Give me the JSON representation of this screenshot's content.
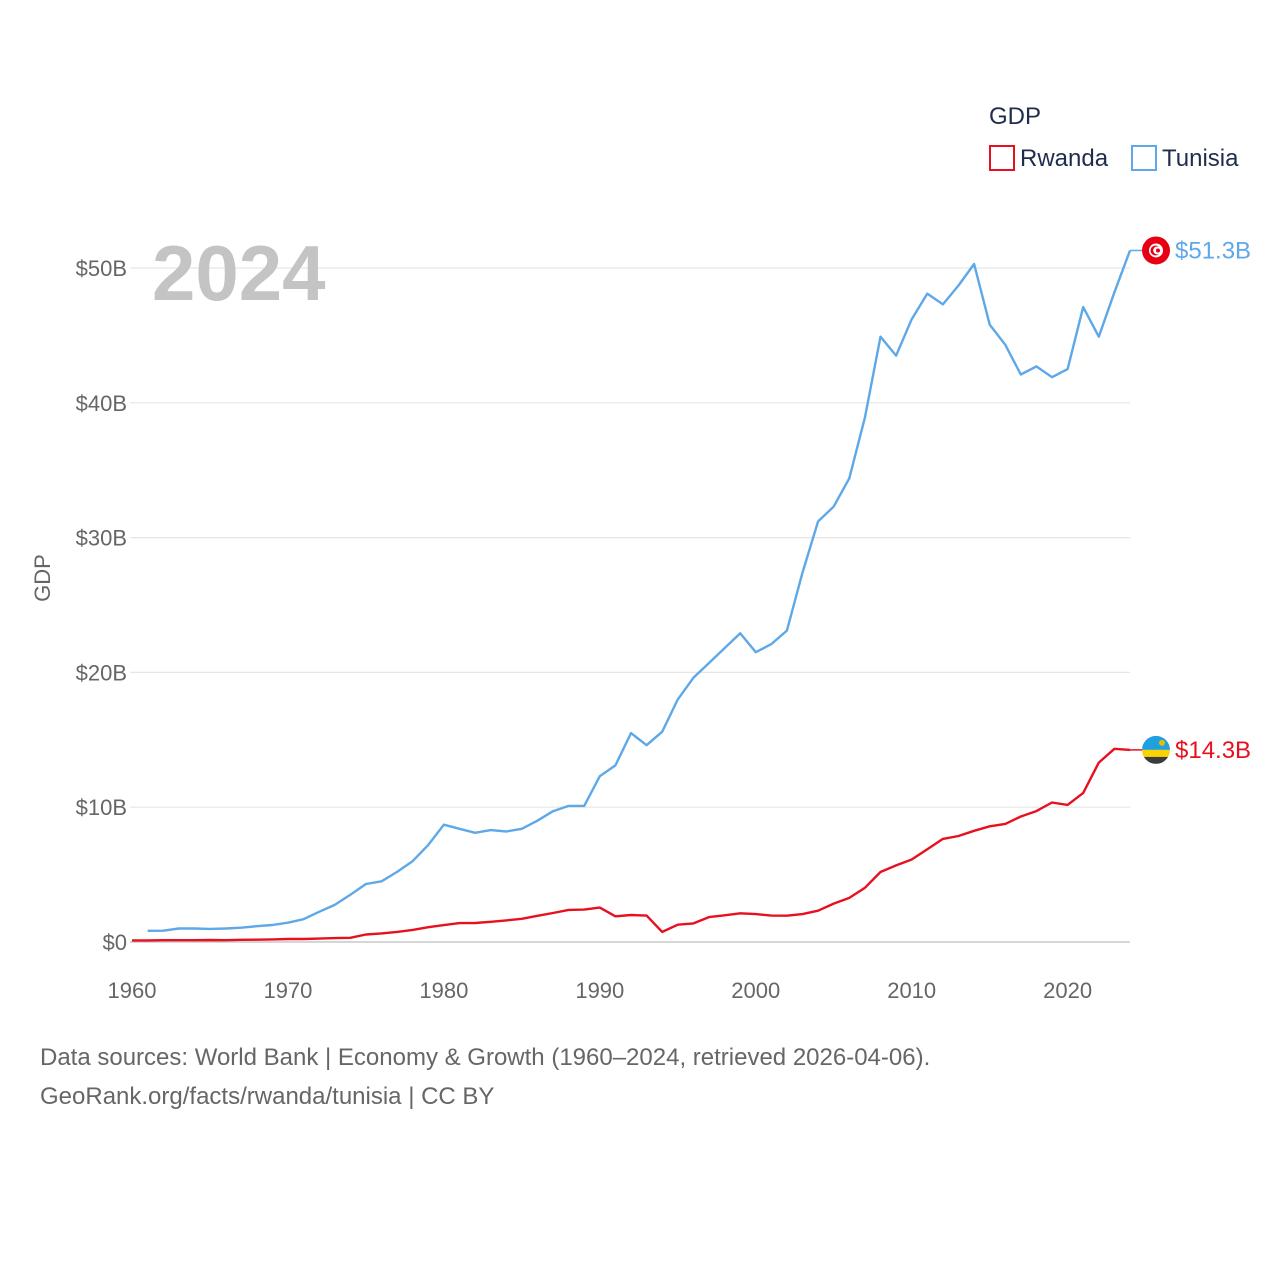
{
  "chart_data": {
    "type": "line",
    "title": "",
    "xlabel": "",
    "ylabel": "GDP",
    "legend_title": "GDP",
    "legend_position": "top-right",
    "year_label": "2024",
    "xlim": [
      1960,
      2024
    ],
    "ylim": [
      0,
      50
    ],
    "x_ticks": [
      1960,
      1970,
      1980,
      1990,
      2000,
      2010,
      2020
    ],
    "y_ticks": [
      {
        "value": 0,
        "label": "$0"
      },
      {
        "value": 10,
        "label": "$10B"
      },
      {
        "value": 20,
        "label": "$20B"
      },
      {
        "value": 30,
        "label": "$30B"
      },
      {
        "value": 40,
        "label": "$40B"
      },
      {
        "value": 50,
        "label": "$50B"
      }
    ],
    "units": "billions USD",
    "grid": true,
    "series": [
      {
        "name": "Rwanda",
        "color": "#e8101f",
        "end_label": "$14.3B",
        "flag_icon": "rwanda-flag-icon",
        "x": [
          1960,
          1961,
          1962,
          1963,
          1964,
          1965,
          1966,
          1967,
          1968,
          1969,
          1970,
          1971,
          1972,
          1973,
          1974,
          1975,
          1976,
          1977,
          1978,
          1979,
          1980,
          1981,
          1982,
          1983,
          1984,
          1985,
          1986,
          1987,
          1988,
          1989,
          1990,
          1991,
          1992,
          1993,
          1994,
          1995,
          1996,
          1997,
          1998,
          1999,
          2000,
          2001,
          2002,
          2003,
          2004,
          2005,
          2006,
          2007,
          2008,
          2009,
          2010,
          2011,
          2012,
          2013,
          2014,
          2015,
          2016,
          2017,
          2018,
          2019,
          2020,
          2021,
          2022,
          2023,
          2024
        ],
        "values": [
          0.12,
          0.12,
          0.13,
          0.13,
          0.13,
          0.15,
          0.13,
          0.16,
          0.17,
          0.19,
          0.22,
          0.22,
          0.25,
          0.29,
          0.31,
          0.56,
          0.64,
          0.75,
          0.9,
          1.1,
          1.25,
          1.4,
          1.41,
          1.5,
          1.6,
          1.72,
          1.94,
          2.15,
          2.38,
          2.4,
          2.55,
          1.91,
          2.0,
          1.96,
          0.75,
          1.28,
          1.38,
          1.85,
          1.98,
          2.13,
          2.07,
          1.96,
          1.95,
          2.07,
          2.32,
          2.85,
          3.27,
          4.02,
          5.19,
          5.68,
          6.12,
          6.88,
          7.65,
          7.86,
          8.25,
          8.58,
          8.76,
          9.31,
          9.71,
          10.35,
          10.17,
          11.06,
          13.31,
          14.33,
          14.25
        ]
      },
      {
        "name": "Tunisia",
        "color": "#5fa8e8",
        "end_label": "$51.3B",
        "flag_icon": "tunisia-flag-icon",
        "x": [
          1961,
          1962,
          1963,
          1964,
          1965,
          1966,
          1967,
          1968,
          1969,
          1970,
          1971,
          1972,
          1973,
          1974,
          1975,
          1976,
          1977,
          1978,
          1979,
          1980,
          1981,
          1982,
          1983,
          1984,
          1985,
          1986,
          1987,
          1988,
          1989,
          1990,
          1991,
          1992,
          1993,
          1994,
          1995,
          1996,
          1997,
          1998,
          1999,
          2000,
          2001,
          2002,
          2003,
          2004,
          2005,
          2006,
          2007,
          2008,
          2009,
          2010,
          2011,
          2012,
          2013,
          2014,
          2015,
          2016,
          2017,
          2018,
          2019,
          2020,
          2021,
          2022,
          2023,
          2024
        ],
        "values": [
          0.83,
          0.84,
          1.0,
          1.0,
          0.97,
          1.0,
          1.06,
          1.17,
          1.26,
          1.43,
          1.69,
          2.24,
          2.75,
          3.5,
          4.3,
          4.5,
          5.2,
          6.0,
          7.2,
          8.7,
          8.4,
          8.1,
          8.3,
          8.2,
          8.4,
          9.0,
          9.7,
          10.1,
          10.1,
          12.3,
          13.1,
          15.5,
          14.6,
          15.6,
          18.0,
          19.6,
          20.7,
          21.8,
          22.9,
          21.5,
          22.1,
          23.1,
          27.4,
          31.2,
          32.3,
          34.4,
          38.9,
          44.9,
          43.5,
          46.2,
          48.1,
          47.3,
          48.7,
          50.3,
          45.8,
          44.3,
          42.1,
          42.7,
          41.9,
          42.5,
          47.1,
          44.9,
          48.2,
          51.3
        ]
      }
    ]
  },
  "footer": {
    "line1": "Data sources: World Bank | Economy & Growth (1960–2024, retrieved 2026-04-06).",
    "line2": "GeoRank.org/facts/rwanda/tunisia | CC BY"
  }
}
